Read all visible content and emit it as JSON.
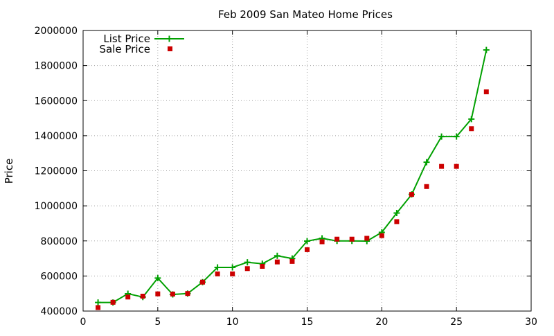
{
  "chart_data": {
    "type": "line",
    "title": "Feb 2009 San Mateo Home Prices",
    "xlabel": "",
    "ylabel": "Price",
    "xlim": [
      0,
      30
    ],
    "ylim": [
      400000,
      2000000
    ],
    "xticks": [
      0,
      5,
      10,
      15,
      20,
      25,
      30
    ],
    "yticks": [
      400000,
      600000,
      800000,
      1000000,
      1200000,
      1400000,
      1600000,
      1800000,
      2000000
    ],
    "grid": true,
    "legend": "top-left",
    "x": [
      1,
      2,
      3,
      4,
      5,
      6,
      7,
      8,
      9,
      10,
      11,
      12,
      13,
      14,
      15,
      16,
      17,
      18,
      19,
      20,
      21,
      22,
      23,
      24,
      25,
      26,
      27
    ],
    "series": [
      {
        "name": "List Price",
        "style": "lines+points",
        "marker": "plus",
        "color": "#00a000",
        "values": [
          449000,
          449000,
          499000,
          480000,
          588000,
          495000,
          500000,
          565000,
          649000,
          649000,
          678000,
          670000,
          715000,
          700000,
          799000,
          815000,
          800000,
          800000,
          799000,
          849000,
          959000,
          1065000,
          1249000,
          1395000,
          1395000,
          1495000,
          1889000
        ]
      },
      {
        "name": "Sale Price",
        "style": "points",
        "marker": "square",
        "color": "#cc0000",
        "values": [
          420000,
          450000,
          480000,
          485000,
          498000,
          497000,
          500000,
          565000,
          612000,
          612000,
          642000,
          655000,
          680000,
          683000,
          750000,
          795000,
          810000,
          810000,
          815000,
          830000,
          910000,
          1065000,
          1110000,
          1225000,
          1225000,
          1440000,
          1650000
        ]
      }
    ]
  }
}
